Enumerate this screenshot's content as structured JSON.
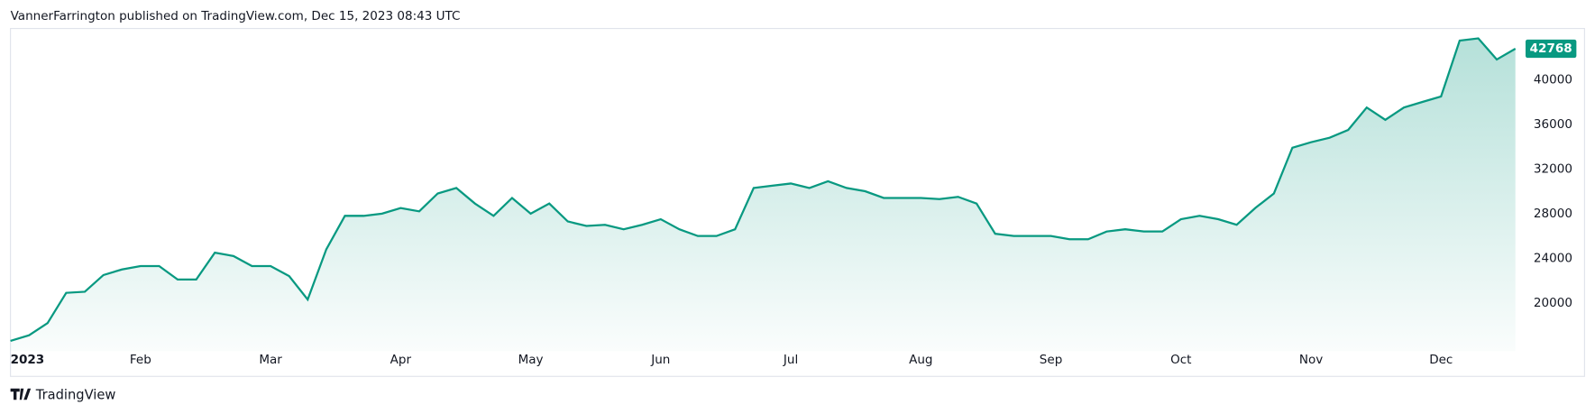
{
  "header": {
    "text": "VannerFarrington published on TradingView.com, Dec 15, 2023 08:43 UTC"
  },
  "footer": {
    "brand": "TradingView"
  },
  "chart_data": {
    "type": "area",
    "categories": [
      "2023",
      null,
      null,
      null,
      null,
      null,
      null,
      "Feb",
      null,
      null,
      null,
      null,
      null,
      null,
      "Mar",
      null,
      null,
      null,
      null,
      null,
      null,
      "Apr",
      null,
      null,
      null,
      null,
      null,
      null,
      "May",
      null,
      null,
      null,
      null,
      null,
      null,
      "Jun",
      null,
      null,
      null,
      null,
      null,
      null,
      "Jul",
      null,
      null,
      null,
      null,
      null,
      null,
      "Aug",
      null,
      null,
      null,
      null,
      null,
      null,
      "Sep",
      null,
      null,
      null,
      null,
      null,
      null,
      "Oct",
      null,
      null,
      null,
      null,
      null,
      null,
      "Nov",
      null,
      null,
      null,
      null,
      null,
      null,
      "Dec",
      null,
      null,
      null,
      null
    ],
    "series": [
      {
        "color": "#089981",
        "values": [
          16600,
          17100,
          18200,
          20900,
          21000,
          22500,
          23000,
          23300,
          23300,
          22100,
          22100,
          24500,
          24200,
          23300,
          23300,
          22400,
          20300,
          24800,
          27800,
          27800,
          28000,
          28500,
          28200,
          29800,
          30300,
          28900,
          27800,
          29400,
          28000,
          28900,
          27300,
          26900,
          27000,
          26600,
          27000,
          27500,
          26600,
          26000,
          26000,
          26600,
          30300,
          30500,
          30700,
          30300,
          30900,
          30300,
          30000,
          29400,
          29400,
          29400,
          29300,
          29500,
          28900,
          26200,
          26000,
          26000,
          26000,
          25700,
          25700,
          26400,
          26600,
          26400,
          26400,
          27500,
          27800,
          27500,
          27000,
          28500,
          29800,
          33900,
          34400,
          34800,
          35500,
          37500,
          36400,
          37500,
          38000,
          38500,
          43500,
          43700,
          41800,
          42768
        ]
      }
    ],
    "ylim": [
      15700,
      44400
    ],
    "yticks": [
      20000,
      24000,
      28000,
      32000,
      36000,
      40000
    ],
    "grid": false
  }
}
